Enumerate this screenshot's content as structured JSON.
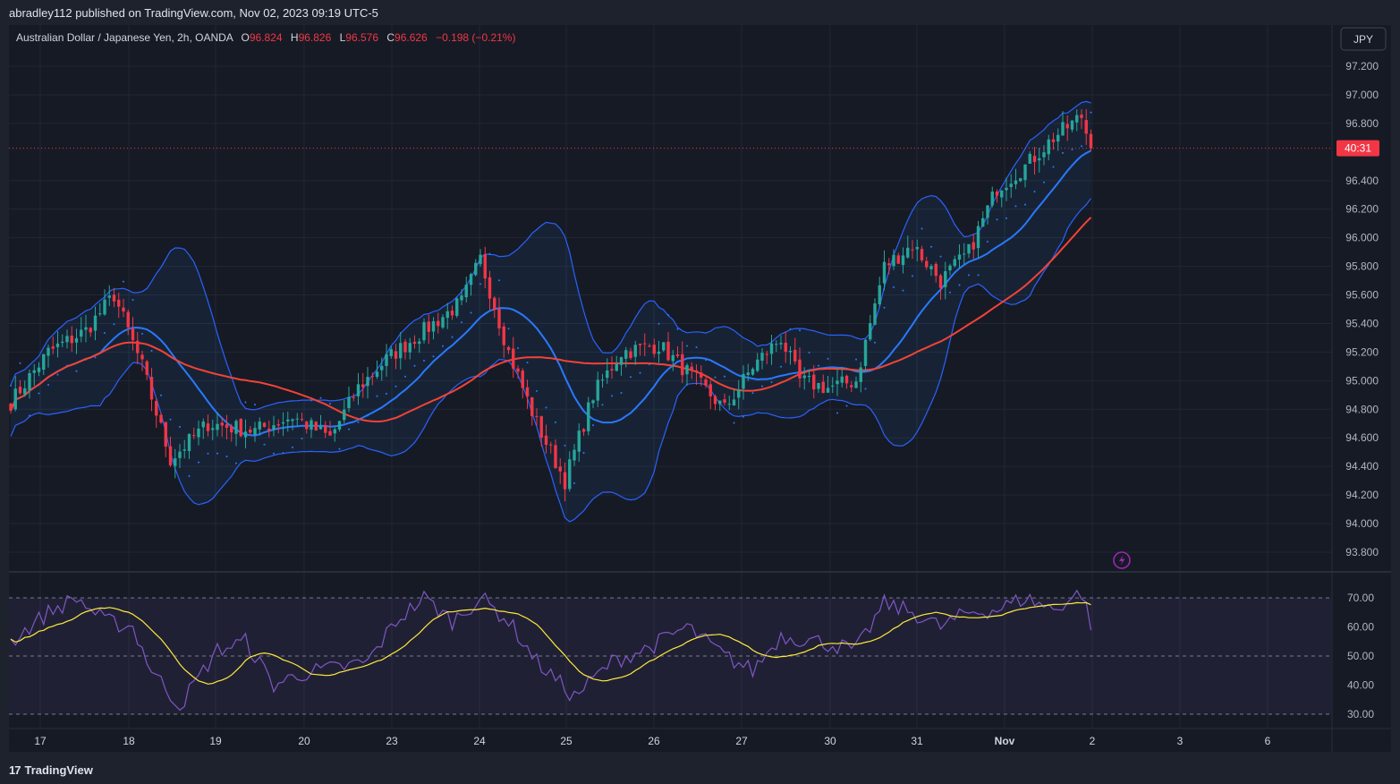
{
  "header": {
    "published_text": "abradley112 published on TradingView.com, Nov 02, 2023 09:19 UTC-5"
  },
  "legend": {
    "symbol": "Australian Dollar / Japanese Yen, 2h, OANDA",
    "o_label": "O",
    "o_value": "96.824",
    "h_label": "H",
    "h_value": "96.826",
    "l_label": "L",
    "l_value": "96.576",
    "c_label": "C",
    "c_value": "96.626",
    "change": "−0.198 (−0.21%)"
  },
  "currency_button": "JPY",
  "price_axis": {
    "ticks": [
      "97.200",
      "97.000",
      "96.800",
      "96.400",
      "96.200",
      "96.000",
      "95.800",
      "95.600",
      "95.400",
      "95.200",
      "95.000",
      "94.800",
      "94.600",
      "94.400",
      "94.200",
      "94.000",
      "93.800"
    ],
    "countdown_label": "40:31"
  },
  "rsi_axis": {
    "ticks": [
      "70.00",
      "60.00",
      "50.00",
      "40.00",
      "30.00"
    ]
  },
  "time_axis": {
    "labels": [
      "17",
      "18",
      "19",
      "20",
      "23",
      "24",
      "25",
      "26",
      "27",
      "30",
      "31",
      "Nov",
      "2",
      "3",
      "6"
    ]
  },
  "footer": {
    "brand": "TradingView"
  },
  "colors": {
    "up": "#26a69a",
    "down": "#f23645",
    "bollinger": "#2962ff",
    "ma_fast": "#2979ff",
    "ma_slow": "#f44336",
    "rsi": "#7e57c2",
    "rsi_ma": "#ffeb3b"
  },
  "chart_data": {
    "type": "candlestick",
    "timeframe": "2h",
    "ylim": [
      93.7,
      97.3
    ],
    "current_price": 96.626,
    "anchors": [
      [
        0,
        94.85
      ],
      [
        8,
        95.2
      ],
      [
        16,
        95.35
      ],
      [
        22,
        95.6
      ],
      [
        28,
        95.1
      ],
      [
        34,
        94.45
      ],
      [
        42,
        94.7
      ],
      [
        52,
        94.65
      ],
      [
        60,
        94.75
      ],
      [
        68,
        94.6
      ],
      [
        74,
        94.95
      ],
      [
        80,
        95.15
      ],
      [
        88,
        95.35
      ],
      [
        96,
        95.55
      ],
      [
        100,
        95.85
      ],
      [
        106,
        95.2
      ],
      [
        112,
        94.7
      ],
      [
        118,
        94.3
      ],
      [
        124,
        94.9
      ],
      [
        130,
        95.2
      ],
      [
        138,
        95.25
      ],
      [
        146,
        95.0
      ],
      [
        152,
        94.8
      ],
      [
        158,
        95.1
      ],
      [
        164,
        95.3
      ],
      [
        168,
        95.0
      ],
      [
        174,
        94.95
      ],
      [
        180,
        95.0
      ],
      [
        186,
        95.8
      ],
      [
        192,
        95.95
      ],
      [
        198,
        95.7
      ],
      [
        204,
        95.9
      ],
      [
        210,
        96.35
      ],
      [
        216,
        96.5
      ],
      [
        222,
        96.7
      ],
      [
        228,
        96.85
      ],
      [
        230,
        96.626
      ]
    ],
    "rsi": {
      "levels": {
        "upper": 70,
        "middle": 50,
        "lower": 30
      },
      "ylim": [
        28,
        75
      ],
      "anchors": [
        [
          0,
          55
        ],
        [
          8,
          65
        ],
        [
          14,
          70
        ],
        [
          20,
          62
        ],
        [
          26,
          60
        ],
        [
          30,
          45
        ],
        [
          36,
          33
        ],
        [
          44,
          52
        ],
        [
          50,
          55
        ],
        [
          56,
          40
        ],
        [
          62,
          44
        ],
        [
          70,
          46
        ],
        [
          76,
          48
        ],
        [
          82,
          62
        ],
        [
          88,
          70
        ],
        [
          94,
          62
        ],
        [
          100,
          70
        ],
        [
          106,
          62
        ],
        [
          112,
          48
        ],
        [
          120,
          36
        ],
        [
          128,
          48
        ],
        [
          136,
          53
        ],
        [
          144,
          60
        ],
        [
          152,
          50
        ],
        [
          158,
          45
        ],
        [
          164,
          57
        ],
        [
          172,
          55
        ],
        [
          180,
          52
        ],
        [
          186,
          68
        ],
        [
          192,
          65
        ],
        [
          198,
          60
        ],
        [
          204,
          65
        ],
        [
          210,
          66
        ],
        [
          216,
          70
        ],
        [
          222,
          66
        ],
        [
          228,
          72
        ],
        [
          230,
          61
        ]
      ]
    }
  }
}
